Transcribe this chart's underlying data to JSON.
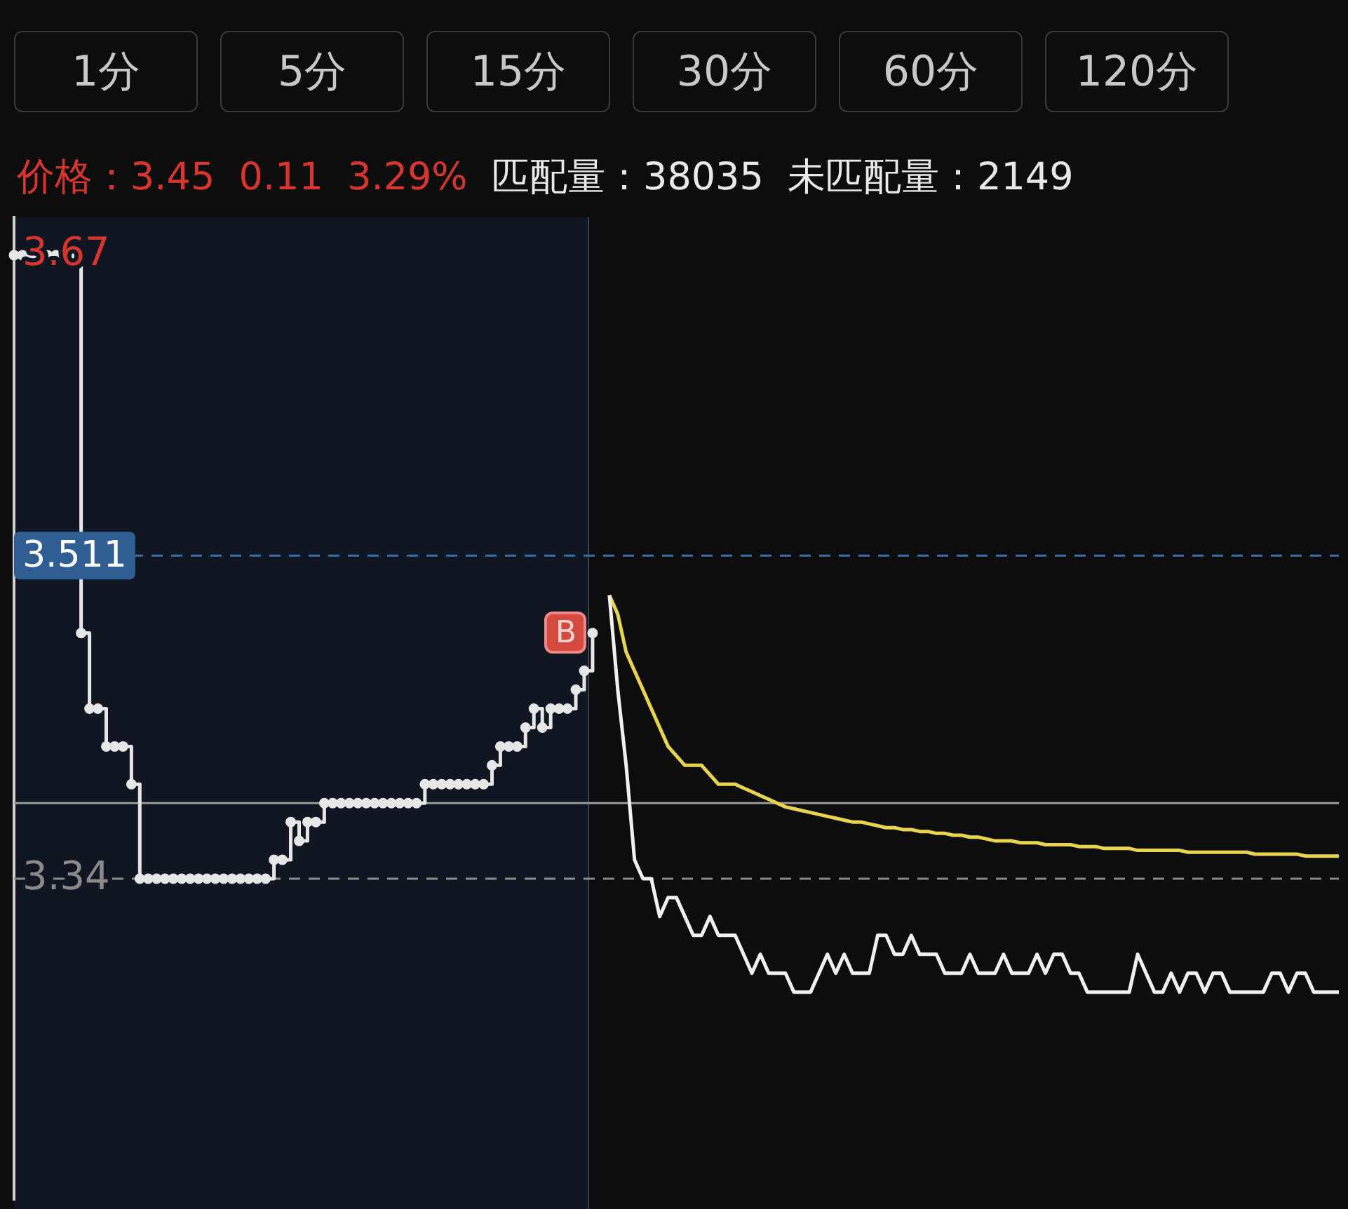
{
  "chart_data": {
    "type": "line",
    "title": "价格：3.45  0.11  3.29%",
    "subtitle": "匹配量：38035  未匹配量：2149",
    "annotations": [
      "1分",
      "5分",
      "15分",
      "30分",
      "60分",
      "120分",
      "B"
    ],
    "categories": [
      null,
      null,
      null,
      null,
      null,
      null,
      null,
      null,
      null,
      null,
      null,
      null,
      null,
      null,
      null,
      null,
      null,
      null,
      null,
      null,
      null,
      null,
      null,
      null,
      null,
      null,
      null,
      null,
      null,
      null,
      null,
      null,
      null,
      null,
      null,
      null,
      null,
      null,
      null,
      null,
      null,
      null,
      null,
      null,
      null,
      null,
      null,
      null,
      null,
      null,
      null,
      null,
      null,
      null,
      null,
      null,
      null,
      null,
      null,
      null,
      null,
      null,
      null,
      null,
      null,
      null,
      null,
      null,
      null,
      null,
      null,
      null,
      null,
      null,
      null,
      null,
      null,
      null,
      null,
      null,
      null,
      null,
      null,
      null,
      null,
      null,
      null,
      null,
      null,
      null,
      null,
      null,
      null,
      null,
      null,
      null,
      null,
      null,
      null,
      null,
      null,
      null,
      null,
      null,
      null,
      null,
      null,
      null,
      null,
      null,
      null,
      null,
      null,
      null,
      null,
      null,
      null,
      null,
      null,
      null,
      null,
      null,
      null,
      null,
      null,
      null,
      null,
      null,
      null,
      null,
      null,
      null,
      null,
      null,
      null,
      null,
      null,
      null,
      null,
      null,
      null,
      null,
      null,
      null,
      null,
      null,
      null,
      null,
      null,
      null,
      null,
      null,
      null,
      null,
      null,
      null,
      null,
      null,
      null
    ],
    "series": [
      {
        "type": "step",
        "marker": "circle",
        "color": "#e6e6e6",
        "values": [
          3.67,
          3.67,
          3.67,
          3.67,
          3.67,
          3.67,
          3.67,
          3.67,
          3.47,
          3.43,
          3.43,
          3.41,
          3.41,
          3.41,
          3.39,
          3.34,
          3.34,
          3.34,
          3.34,
          3.34,
          3.34,
          3.34,
          3.34,
          3.34,
          3.34,
          3.34,
          3.34,
          3.34,
          3.34,
          3.34,
          3.34,
          3.35,
          3.35,
          3.37,
          3.36,
          3.37,
          3.37,
          3.38,
          3.38,
          3.38,
          3.38,
          3.38,
          3.38,
          3.38,
          3.38,
          3.38,
          3.38,
          3.38,
          3.38,
          3.39,
          3.39,
          3.39,
          3.39,
          3.39,
          3.39,
          3.39,
          3.39,
          3.4,
          3.41,
          3.41,
          3.41,
          3.42,
          3.43,
          3.42,
          3.43,
          3.43,
          3.43,
          3.44,
          3.45,
          3.47,
          null,
          null,
          null,
          null,
          null,
          null,
          null,
          null,
          null,
          null,
          null,
          null,
          null,
          null,
          null,
          null,
          null,
          null,
          null,
          null,
          null,
          null,
          null,
          null,
          null,
          null,
          null,
          null,
          null,
          null,
          null,
          null,
          null,
          null,
          null,
          null,
          null,
          null,
          null,
          null,
          null,
          null,
          null,
          null,
          null,
          null,
          null,
          null,
          null,
          null,
          null,
          null,
          null,
          null,
          null,
          null,
          null,
          null,
          null,
          null,
          null,
          null,
          null,
          null,
          null,
          null,
          null,
          null,
          null,
          null,
          null,
          null,
          null,
          null,
          null,
          null,
          null,
          null,
          null,
          null,
          null,
          null,
          null,
          null,
          null,
          null,
          null,
          null,
          null
        ]
      },
      {
        "type": "line",
        "color": "#f0f0f0",
        "values": [
          null,
          null,
          null,
          null,
          null,
          null,
          null,
          null,
          null,
          null,
          null,
          null,
          null,
          null,
          null,
          null,
          null,
          null,
          null,
          null,
          null,
          null,
          null,
          null,
          null,
          null,
          null,
          null,
          null,
          null,
          null,
          null,
          null,
          null,
          null,
          null,
          null,
          null,
          null,
          null,
          null,
          null,
          null,
          null,
          null,
          null,
          null,
          null,
          null,
          null,
          null,
          null,
          null,
          null,
          null,
          null,
          null,
          null,
          null,
          null,
          null,
          null,
          null,
          null,
          null,
          null,
          null,
          null,
          null,
          null,
          null,
          3.49,
          3.44,
          3.4,
          3.35,
          3.34,
          3.34,
          3.32,
          3.33,
          3.33,
          3.32,
          3.31,
          3.31,
          3.32,
          3.31,
          3.31,
          3.31,
          3.3,
          3.29,
          3.3,
          3.29,
          3.29,
          3.29,
          3.28,
          3.28,
          3.28,
          3.29,
          3.3,
          3.29,
          3.3,
          3.29,
          3.29,
          3.29,
          3.31,
          3.31,
          3.3,
          3.3,
          3.31,
          3.3,
          3.3,
          3.3,
          3.29,
          3.29,
          3.29,
          3.3,
          3.29,
          3.29,
          3.29,
          3.3,
          3.29,
          3.29,
          3.29,
          3.3,
          3.29,
          3.3,
          3.3,
          3.29,
          3.29,
          3.28,
          3.28,
          3.28,
          3.28,
          3.28,
          3.28,
          3.3,
          3.29,
          3.28,
          3.28,
          3.29,
          3.28,
          3.29,
          3.29,
          3.28,
          3.29,
          3.29,
          3.28,
          3.28,
          3.28,
          3.28,
          3.28,
          3.29,
          3.29,
          3.28,
          3.29,
          3.29,
          3.28,
          3.28,
          3.28,
          3.28
        ]
      },
      {
        "type": "line",
        "color": "#e8d44d",
        "values": [
          null,
          null,
          null,
          null,
          null,
          null,
          null,
          null,
          null,
          null,
          null,
          null,
          null,
          null,
          null,
          null,
          null,
          null,
          null,
          null,
          null,
          null,
          null,
          null,
          null,
          null,
          null,
          null,
          null,
          null,
          null,
          null,
          null,
          null,
          null,
          null,
          null,
          null,
          null,
          null,
          null,
          null,
          null,
          null,
          null,
          null,
          null,
          null,
          null,
          null,
          null,
          null,
          null,
          null,
          null,
          null,
          null,
          null,
          null,
          null,
          null,
          null,
          null,
          null,
          null,
          null,
          null,
          null,
          null,
          null,
          null,
          3.49,
          3.48,
          3.46,
          3.45,
          3.44,
          3.43,
          3.42,
          3.41,
          3.405,
          3.4,
          3.4,
          3.4,
          3.395,
          3.39,
          3.39,
          3.39,
          3.388,
          3.386,
          3.384,
          3.382,
          3.38,
          3.378,
          3.377,
          3.376,
          3.375,
          3.374,
          3.373,
          3.372,
          3.371,
          3.37,
          3.37,
          3.369,
          3.368,
          3.367,
          3.367,
          3.366,
          3.366,
          3.365,
          3.365,
          3.364,
          3.364,
          3.363,
          3.363,
          3.362,
          3.362,
          3.361,
          3.36,
          3.36,
          3.36,
          3.359,
          3.359,
          3.359,
          3.358,
          3.358,
          3.358,
          3.358,
          3.357,
          3.357,
          3.357,
          3.356,
          3.356,
          3.356,
          3.356,
          3.355,
          3.355,
          3.355,
          3.355,
          3.355,
          3.355,
          3.354,
          3.354,
          3.354,
          3.354,
          3.354,
          3.354,
          3.354,
          3.354,
          3.353,
          3.353,
          3.353,
          3.353,
          3.353,
          3.353,
          3.352,
          3.352,
          3.352,
          3.352,
          3.352
        ]
      }
    ],
    "ylim": [
      3.17,
      3.69
    ],
    "yticks": [
      3.67,
      3.34
    ],
    "tick_labels": "y",
    "grid": false,
    "legend": false,
    "ref_lines": [
      {
        "axis": "y",
        "value": 3.511,
        "label": "3.511",
        "color": "#3a6ea5",
        "line_style": "dashed"
      },
      {
        "axis": "y",
        "value": 3.34,
        "color": "#8a8a8a",
        "line_style": "dashed"
      },
      {
        "axis": "y",
        "value": 3.38,
        "color": "#9a9a9a",
        "line_style": "solid"
      }
    ]
  }
}
